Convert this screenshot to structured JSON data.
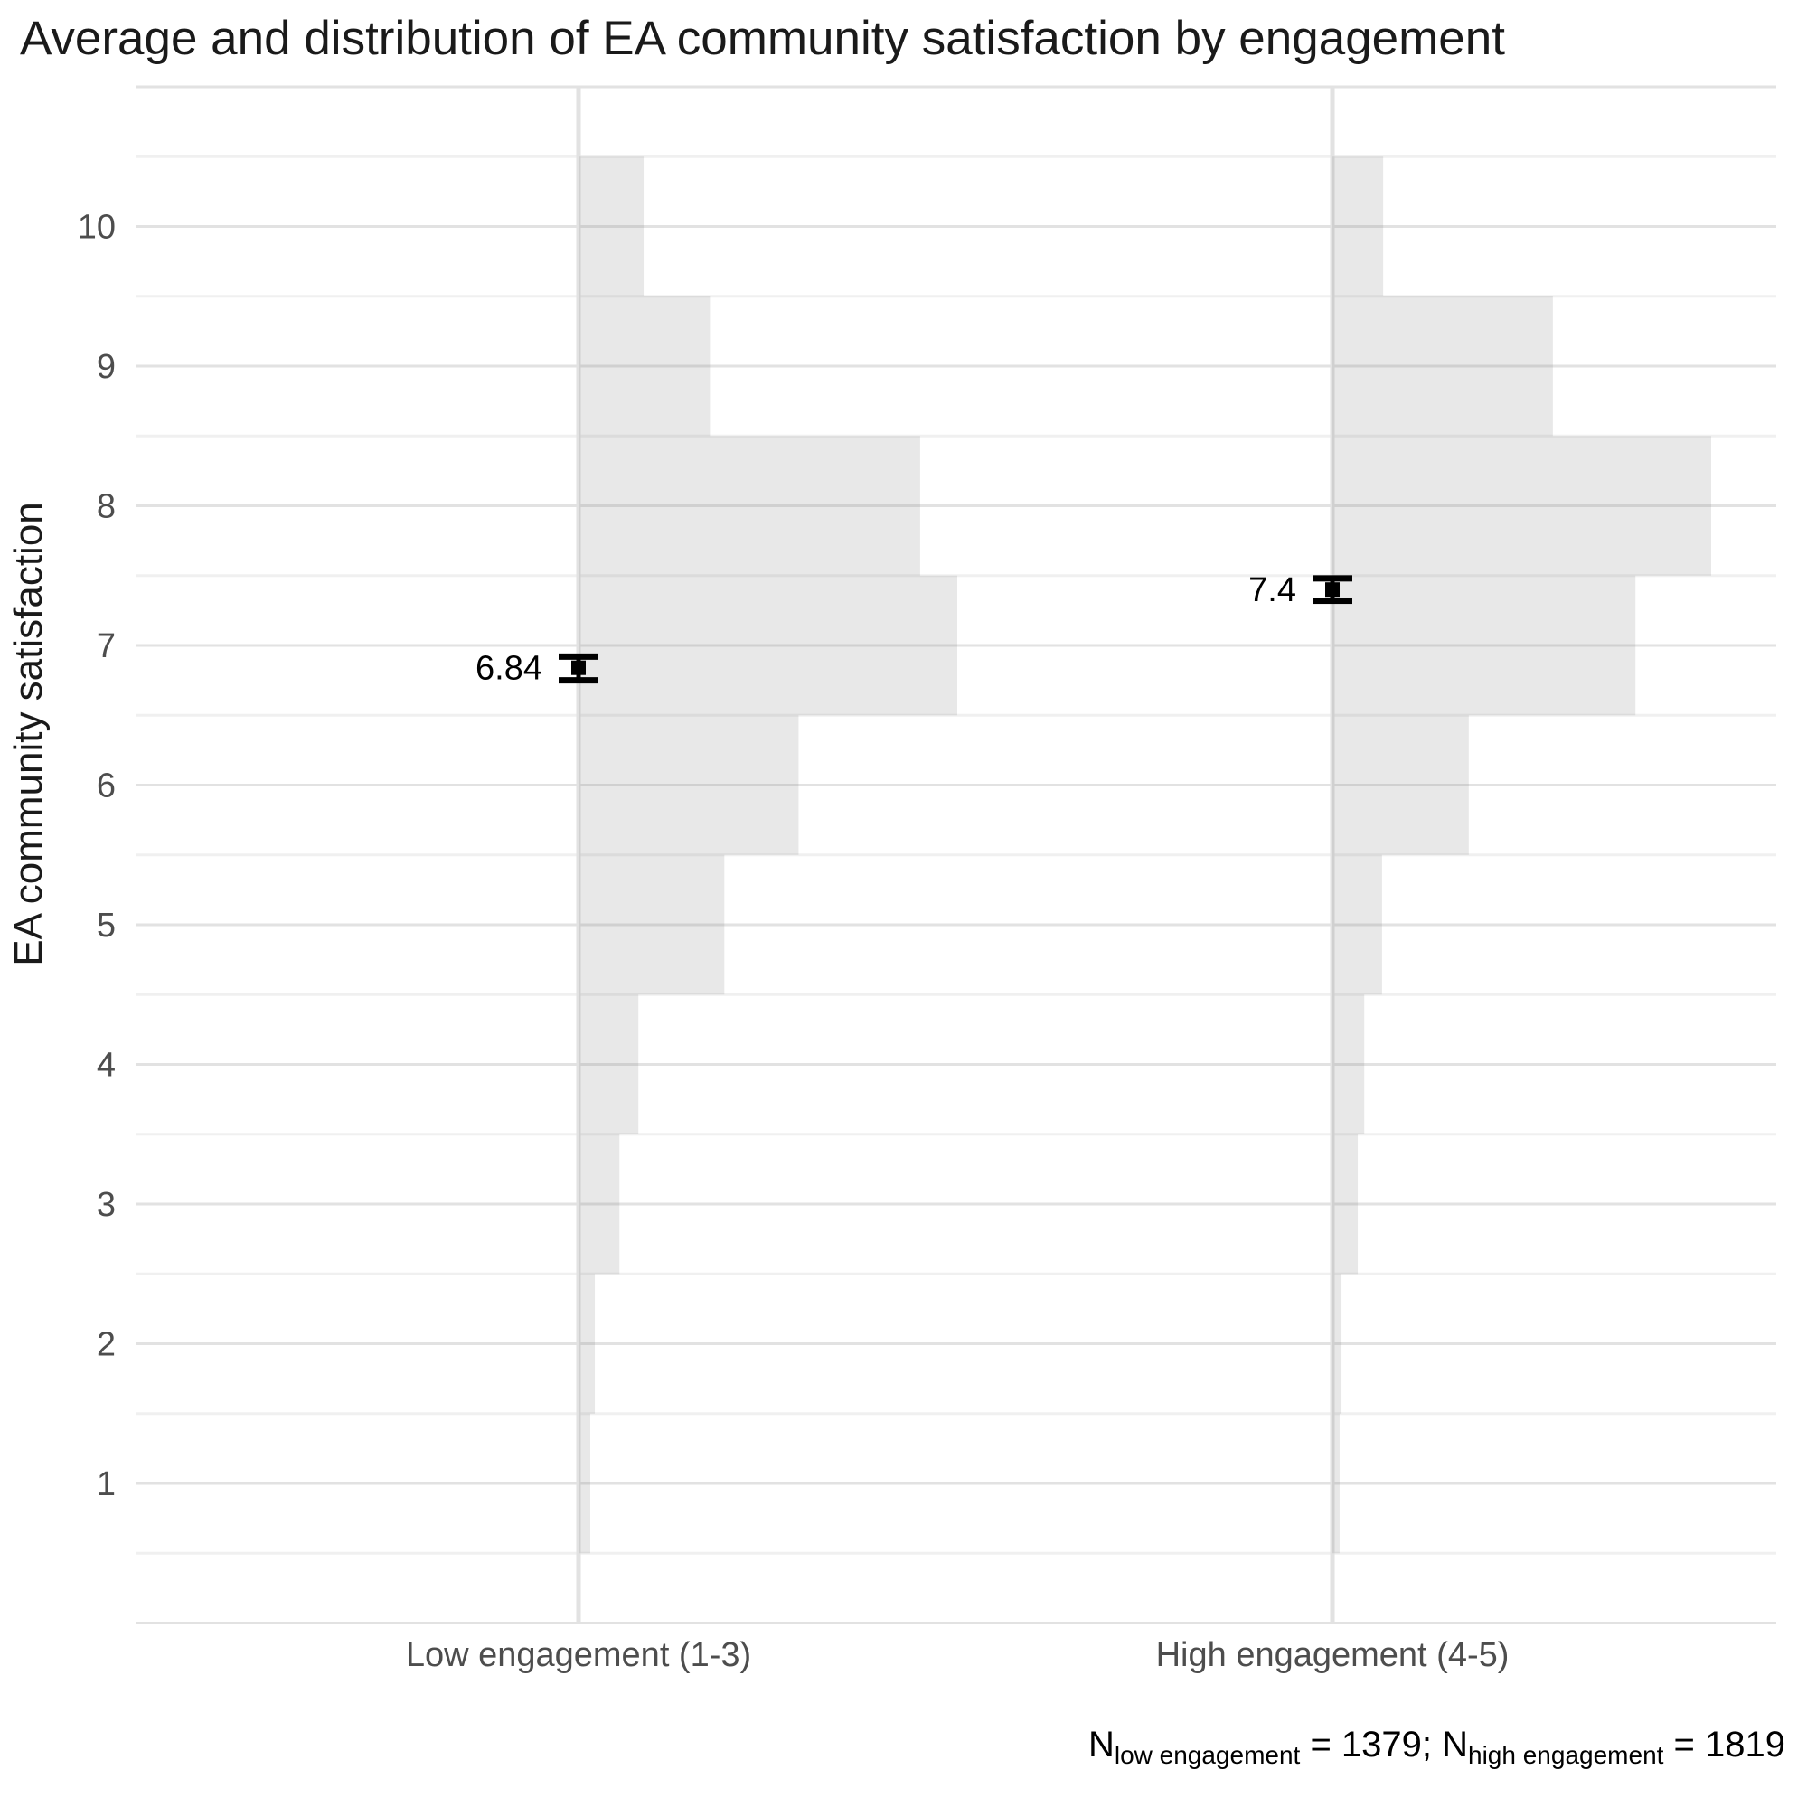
{
  "title": "Average and distribution of EA community satisfaction by engagement",
  "y_axis": {
    "label": "EA community satisfaction",
    "ticks": [
      1,
      2,
      3,
      4,
      5,
      6,
      7,
      8,
      9,
      10
    ]
  },
  "x_axis": {
    "categories": [
      {
        "label": "Low engagement (1-3)"
      },
      {
        "label": "High engagement (4-5)"
      }
    ]
  },
  "caption": {
    "n1": "N",
    "sub1": "low engagement",
    "eq1": " = 1379; ",
    "n2": "N",
    "sub2": "high engagement",
    "eq2": " = 1819"
  },
  "colors": {
    "bar_fill": "rgba(127,127,127,0.18)",
    "grid_major": "#e2e2e2",
    "grid_minor": "#f0f0f0",
    "marker": "#000000",
    "mean_label_text": "#000000",
    "axis_text": "#4d4d4d",
    "title_text": "#1a1a1a"
  },
  "chart_data": {
    "type": "bar",
    "subtype": "horizontal-histogram-with-interval",
    "title": "Average and distribution of EA community satisfaction by engagement",
    "ylabel": "EA community satisfaction",
    "ylim": [
      0,
      11
    ],
    "grid": "on",
    "bin_centers": [
      1,
      2,
      3,
      4,
      5,
      6,
      7,
      8,
      9,
      10
    ],
    "bin_width": 1,
    "series": [
      {
        "name": "Low engagement (1-3)",
        "n": 1379,
        "mean": 6.84,
        "mean_label": "6.84",
        "ci": [
          6.75,
          6.92
        ],
        "relative_widths": [
          0.031,
          0.043,
          0.108,
          0.158,
          0.385,
          0.581,
          1.0,
          0.902,
          0.347,
          0.172
        ]
      },
      {
        "name": "High engagement (4-5)",
        "n": 1819,
        "mean": 7.4,
        "mean_label": "7.4",
        "ci": [
          7.32,
          7.48
        ],
        "relative_widths": [
          0.019,
          0.024,
          0.067,
          0.084,
          0.131,
          0.36,
          0.8,
          1.0,
          0.582,
          0.134
        ]
      }
    ]
  }
}
